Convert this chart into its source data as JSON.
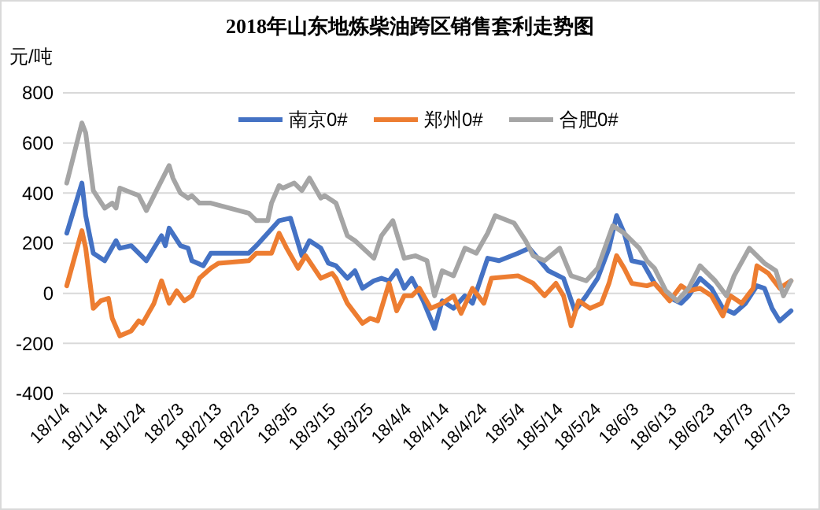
{
  "chart_data": {
    "type": "line",
    "title": "2018年山东地炼柴油跨区销售套利走势图",
    "ylabel": "元/吨",
    "ylim": [
      -400,
      800
    ],
    "yticks": [
      -400,
      -200,
      0,
      200,
      400,
      600,
      800
    ],
    "xlim": [
      "2018-01-03",
      "2018-07-15"
    ],
    "xticks": [
      {
        "value": "2018-01-04",
        "label": "18/1/4"
      },
      {
        "value": "2018-01-14",
        "label": "18/1/14"
      },
      {
        "value": "2018-01-24",
        "label": "18/1/24"
      },
      {
        "value": "2018-02-03",
        "label": "18/2/3"
      },
      {
        "value": "2018-02-13",
        "label": "18/2/13"
      },
      {
        "value": "2018-02-23",
        "label": "18/2/23"
      },
      {
        "value": "2018-03-05",
        "label": "18/3/5"
      },
      {
        "value": "2018-03-15",
        "label": "18/3/15"
      },
      {
        "value": "2018-03-25",
        "label": "18/3/25"
      },
      {
        "value": "2018-04-04",
        "label": "18/4/4"
      },
      {
        "value": "2018-04-14",
        "label": "18/4/14"
      },
      {
        "value": "2018-04-24",
        "label": "18/4/24"
      },
      {
        "value": "2018-05-04",
        "label": "18/5/4"
      },
      {
        "value": "2018-05-14",
        "label": "18/5/14"
      },
      {
        "value": "2018-05-24",
        "label": "18/5/24"
      },
      {
        "value": "2018-06-03",
        "label": "18/6/3"
      },
      {
        "value": "2018-06-13",
        "label": "18/6/13"
      },
      {
        "value": "2018-06-23",
        "label": "18/6/23"
      },
      {
        "value": "2018-07-03",
        "label": "18/7/3"
      },
      {
        "value": "2018-07-13",
        "label": "18/7/13"
      }
    ],
    "grid": "y",
    "legend": "top",
    "line_style": "solid",
    "marker": "none",
    "series": [
      {
        "name": "南京0#",
        "color": "#4472c4",
        "x": [
          "2018-01-04",
          "2018-01-08",
          "2018-01-09",
          "2018-01-11",
          "2018-01-14",
          "2018-01-17",
          "2018-01-18",
          "2018-01-21",
          "2018-01-25",
          "2018-01-29",
          "2018-01-30",
          "2018-01-31",
          "2018-02-03",
          "2018-02-05",
          "2018-02-06",
          "2018-02-09",
          "2018-02-11",
          "2018-02-21",
          "2018-02-23",
          "2018-02-26",
          "2018-03-01",
          "2018-03-04",
          "2018-03-07",
          "2018-03-09",
          "2018-03-12",
          "2018-03-14",
          "2018-03-16",
          "2018-03-19",
          "2018-03-21",
          "2018-03-23",
          "2018-03-26",
          "2018-03-28",
          "2018-03-30",
          "2018-04-01",
          "2018-04-03",
          "2018-04-05",
          "2018-04-08",
          "2018-04-11",
          "2018-04-13",
          "2018-04-16",
          "2018-04-19",
          "2018-04-21",
          "2018-04-25",
          "2018-04-28",
          "2018-05-03",
          "2018-05-06",
          "2018-05-11",
          "2018-05-15",
          "2018-05-18",
          "2018-05-21",
          "2018-05-24",
          "2018-05-27",
          "2018-05-29",
          "2018-05-31",
          "2018-06-02",
          "2018-06-05",
          "2018-06-08",
          "2018-06-11",
          "2018-06-15",
          "2018-06-17",
          "2018-06-20",
          "2018-06-23",
          "2018-06-26",
          "2018-06-29",
          "2018-07-02",
          "2018-07-05",
          "2018-07-07",
          "2018-07-09",
          "2018-07-11",
          "2018-07-14"
        ],
        "values": [
          240,
          440,
          310,
          160,
          130,
          210,
          180,
          190,
          130,
          230,
          190,
          260,
          190,
          180,
          130,
          110,
          160,
          160,
          190,
          240,
          290,
          300,
          150,
          210,
          180,
          120,
          110,
          60,
          90,
          20,
          50,
          60,
          50,
          90,
          20,
          60,
          -30,
          -140,
          -30,
          -60,
          -10,
          -40,
          140,
          130,
          160,
          180,
          90,
          60,
          -70,
          -10,
          60,
          180,
          310,
          240,
          130,
          120,
          40,
          -10,
          -40,
          -10,
          60,
          20,
          -60,
          -80,
          -40,
          30,
          20,
          -60,
          -110,
          -70
        ]
      },
      {
        "name": "郑州0#",
        "color": "#ed7d31",
        "x": [
          "2018-01-04",
          "2018-01-08",
          "2018-01-09",
          "2018-01-11",
          "2018-01-13",
          "2018-01-15",
          "2018-01-16",
          "2018-01-18",
          "2018-01-21",
          "2018-01-23",
          "2018-01-24",
          "2018-01-27",
          "2018-01-29",
          "2018-01-31",
          "2018-02-02",
          "2018-02-04",
          "2018-02-06",
          "2018-02-08",
          "2018-02-11",
          "2018-02-13",
          "2018-02-21",
          "2018-02-23",
          "2018-02-27",
          "2018-03-01",
          "2018-03-03",
          "2018-03-06",
          "2018-03-08",
          "2018-03-12",
          "2018-03-15",
          "2018-03-16",
          "2018-03-19",
          "2018-03-23",
          "2018-03-25",
          "2018-03-27",
          "2018-03-30",
          "2018-04-01",
          "2018-04-03",
          "2018-04-05",
          "2018-04-07",
          "2018-04-10",
          "2018-04-13",
          "2018-04-16",
          "2018-04-18",
          "2018-04-21",
          "2018-04-24",
          "2018-04-26",
          "2018-05-03",
          "2018-05-07",
          "2018-05-10",
          "2018-05-13",
          "2018-05-15",
          "2018-05-17",
          "2018-05-19",
          "2018-05-22",
          "2018-05-25",
          "2018-05-27",
          "2018-05-29",
          "2018-05-31",
          "2018-06-02",
          "2018-06-06",
          "2018-06-08",
          "2018-06-12",
          "2018-06-15",
          "2018-06-17",
          "2018-06-20",
          "2018-06-23",
          "2018-06-26",
          "2018-06-28",
          "2018-07-01",
          "2018-07-04",
          "2018-07-05",
          "2018-07-08",
          "2018-07-11",
          "2018-07-14"
        ],
        "values": [
          30,
          250,
          180,
          -60,
          -30,
          -20,
          -100,
          -170,
          -150,
          -110,
          -120,
          -40,
          50,
          -40,
          10,
          -30,
          -10,
          60,
          100,
          120,
          130,
          160,
          160,
          240,
          180,
          100,
          150,
          60,
          80,
          60,
          -40,
          -120,
          -100,
          -110,
          40,
          -70,
          -10,
          -10,
          20,
          -60,
          -40,
          -10,
          -80,
          20,
          -40,
          60,
          70,
          40,
          -10,
          40,
          -10,
          -130,
          -30,
          -60,
          -40,
          40,
          150,
          100,
          40,
          30,
          40,
          -30,
          30,
          10,
          20,
          -10,
          -90,
          -10,
          -40,
          20,
          110,
          80,
          20,
          50
        ]
      },
      {
        "name": "合肥0#",
        "color": "#a5a5a5",
        "x": [
          "2018-01-04",
          "2018-01-08",
          "2018-01-09",
          "2018-01-11",
          "2018-01-14",
          "2018-01-16",
          "2018-01-17",
          "2018-01-18",
          "2018-01-23",
          "2018-01-25",
          "2018-01-28",
          "2018-01-31",
          "2018-02-01",
          "2018-02-03",
          "2018-02-05",
          "2018-02-06",
          "2018-02-08",
          "2018-02-11",
          "2018-02-21",
          "2018-02-23",
          "2018-02-26",
          "2018-02-27",
          "2018-03-01",
          "2018-03-02",
          "2018-03-05",
          "2018-03-07",
          "2018-03-09",
          "2018-03-12",
          "2018-03-13",
          "2018-03-16",
          "2018-03-19",
          "2018-03-21",
          "2018-03-26",
          "2018-03-28",
          "2018-03-31",
          "2018-04-03",
          "2018-04-06",
          "2018-04-09",
          "2018-04-11",
          "2018-04-13",
          "2018-04-16",
          "2018-04-19",
          "2018-04-22",
          "2018-04-25",
          "2018-04-27",
          "2018-05-02",
          "2018-05-05",
          "2018-05-07",
          "2018-05-10",
          "2018-05-14",
          "2018-05-17",
          "2018-05-21",
          "2018-05-24",
          "2018-05-28",
          "2018-05-31",
          "2018-06-04",
          "2018-06-06",
          "2018-06-08",
          "2018-06-11",
          "2018-06-14",
          "2018-06-17",
          "2018-06-20",
          "2018-06-24",
          "2018-06-27",
          "2018-06-29",
          "2018-07-03",
          "2018-07-07",
          "2018-07-10",
          "2018-07-12",
          "2018-07-14"
        ],
        "values": [
          440,
          680,
          640,
          410,
          340,
          360,
          340,
          420,
          390,
          330,
          420,
          510,
          460,
          400,
          380,
          390,
          360,
          360,
          320,
          290,
          290,
          360,
          430,
          420,
          440,
          410,
          460,
          380,
          390,
          360,
          230,
          210,
          140,
          230,
          290,
          140,
          150,
          130,
          -10,
          90,
          70,
          180,
          160,
          240,
          310,
          280,
          210,
          150,
          130,
          180,
          70,
          50,
          100,
          270,
          240,
          180,
          130,
          100,
          10,
          -30,
          20,
          110,
          50,
          -10,
          70,
          180,
          120,
          90,
          -10,
          50
        ]
      }
    ]
  }
}
